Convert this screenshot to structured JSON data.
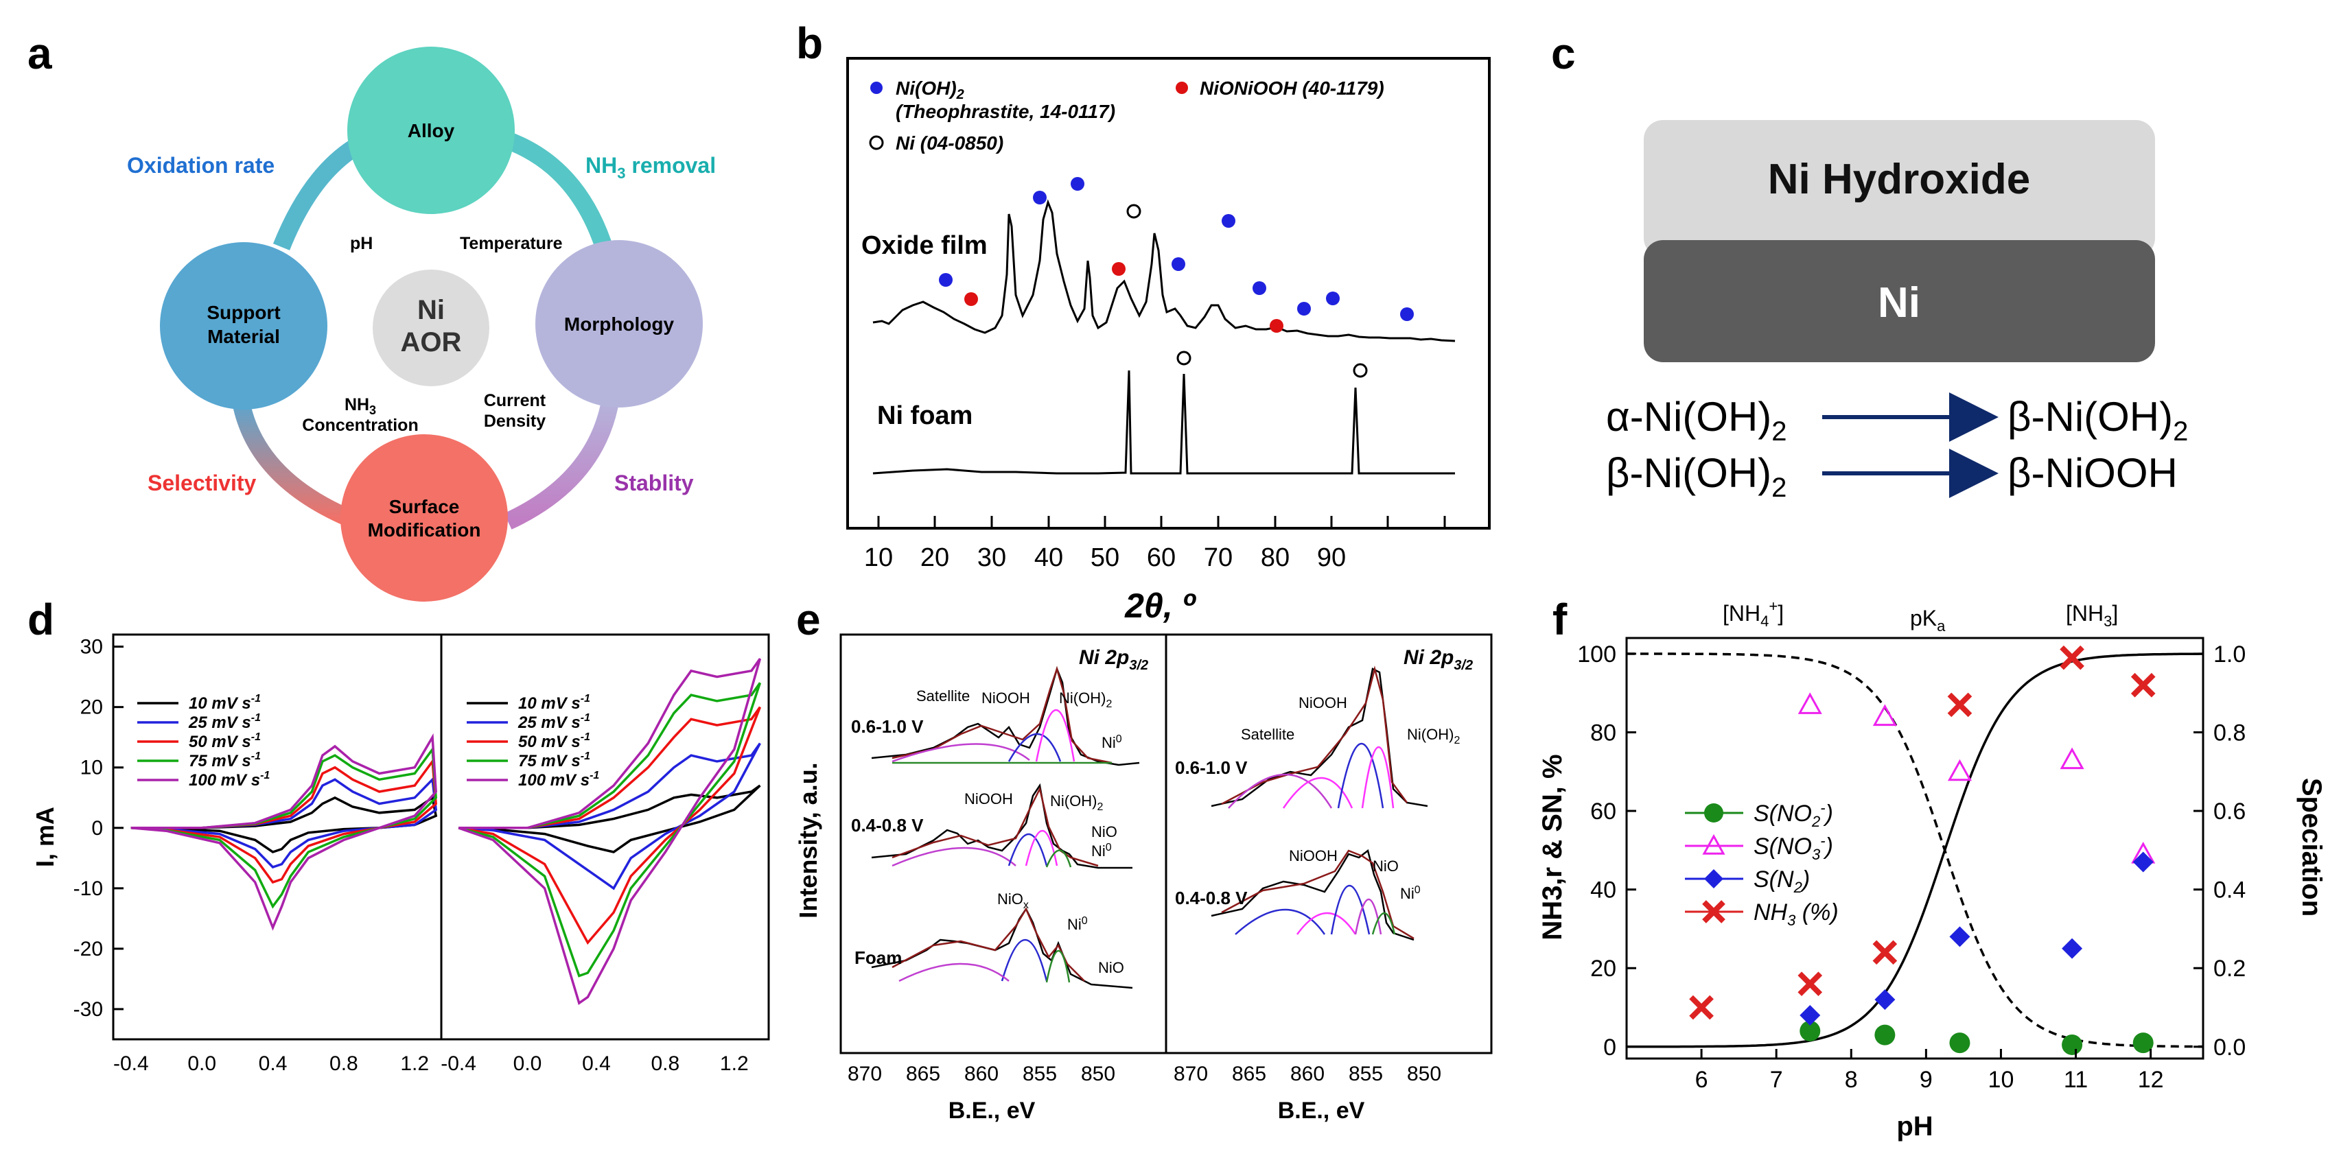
{
  "panel_a": {
    "label": "a",
    "center": {
      "line1": "Ni",
      "line2": "AOR"
    },
    "nodes": {
      "alloy": "Alloy",
      "support": [
        "Support",
        "Material"
      ],
      "morphology": "Morphology",
      "surface": [
        "Surface",
        "Modification"
      ]
    },
    "arc_labels": {
      "oxidation_rate": "Oxidation rate",
      "nh3_removal_prefix": "NH",
      "nh3_removal_sub": "3",
      "nh3_removal_suffix": " removal",
      "selectivity": "Selectivity",
      "stability": "Stablity"
    },
    "inner_labels": {
      "ph": "pH",
      "temperature": "Temperature",
      "nh3_prefix": "NH",
      "nh3_sub": "3",
      "concentration": "Concentration",
      "current": "Current",
      "density": "Density"
    },
    "colors": {
      "alloy": "#5dd3c0",
      "support": "#57a7d1",
      "morphology": "#b5b5dc",
      "surface": "#f37167",
      "center": "#dcdcdc"
    }
  },
  "panel_b": {
    "label": "b",
    "legend": {
      "niooh2_a": "Ni(OH)",
      "niooh2_sub": "2",
      "niooh2_b": "(Theophrastite, 14-0117)",
      "nio": "NiONiOOH (40-1179)",
      "ni": "Ni (04-0850)"
    },
    "traces": {
      "oxide": "Oxide film",
      "foam": "Ni foam"
    },
    "xlabel": "2θ, º",
    "xticks": [
      "10",
      "20",
      "30",
      "40",
      "50",
      "60",
      "70",
      "80",
      "90"
    ]
  },
  "panel_c": {
    "label": "c",
    "top_layer": "Ni Hydroxide",
    "bottom_layer": "Ni",
    "reaction1_from": "α-Ni(OH)",
    "reaction1_to": "β-Ni(OH)",
    "reaction2_from": "β-Ni(OH)",
    "reaction2_to": "β-NiOOH",
    "sub2": "2"
  },
  "panel_d": {
    "label": "d",
    "ylabel": "I, mA",
    "yticks": [
      "30",
      "20",
      "10",
      "0",
      "-10",
      "-20",
      "-30"
    ],
    "xticks_left": [
      "-0.4",
      "0.0",
      "0.4",
      "0.8",
      "1.2"
    ],
    "xticks_right": [
      "-0.4",
      "0.0",
      "0.4",
      "0.8",
      "1.2"
    ],
    "legend": [
      "10 mV s",
      "25 mV s",
      "50 mV s",
      "75 mV s",
      "100 mV s"
    ],
    "legend_sup": "-1",
    "colors": [
      "#000000",
      "#2222dd",
      "#ee1111",
      "#11aa11",
      "#aa22aa"
    ]
  },
  "panel_e": {
    "label": "e",
    "ylabel": "Intensity, a.u.",
    "xlabel": "B.E., eV",
    "title_a": "Ni 2p",
    "title_sub": "3/2",
    "xticks": [
      "870",
      "865",
      "860",
      "855",
      "850"
    ],
    "left": {
      "top_range": "0.6-1.0 V",
      "mid_range": "0.4-0.8 V",
      "bottom_range": "Foam",
      "satellite": "Satellite",
      "niooh": "NiOOH",
      "nioh2": "Ni(OH)",
      "ni0": "Ni",
      "nio": "NiO",
      "niox": "NiO",
      "sup0": "0",
      "subx": "x"
    },
    "right": {
      "top_range": "0.6-1.0 V",
      "mid_range": "0.4-0.8 V",
      "satellite": "Satellite",
      "niooh": "NiOOH",
      "nioh2": "Ni(OH)",
      "nio": "NiO",
      "ni0": "Ni"
    }
  },
  "panel_f": {
    "label": "f",
    "top_labels": {
      "nh4": "[NH",
      "nh4_sup": "4",
      "nh4_plus": "+",
      "nh4_close": "]",
      "pka": "pK",
      "pka_sub": "a",
      "nh3": "[NH",
      "nh3_sub": "3",
      "nh3_close": "]"
    },
    "ylabel_left": "NH3,r & SN, %",
    "ylabel_right": "Speciation",
    "xlabel": "pH",
    "legend": [
      "S(NO2-)",
      "S(NO3-)",
      "S(N2)",
      "NH3 (%)"
    ]
  },
  "chart_data": [
    {
      "id": "d-left",
      "type": "line",
      "title": "",
      "xlabel": "",
      "ylabel": "I, mA",
      "xlim": [
        -0.5,
        1.35
      ],
      "ylim": [
        -35,
        32
      ],
      "series": [
        {
          "name": "10 mV s-1",
          "color": "#000000",
          "x": [
            -0.4,
            0.0,
            0.3,
            0.5,
            0.62,
            0.68,
            0.75,
            0.85,
            1.0,
            1.2,
            1.3,
            1.32,
            1.2,
            1.0,
            0.8,
            0.6,
            0.5,
            0.45,
            0.4,
            0.3,
            0.1,
            -0.2,
            -0.4
          ],
          "y": [
            0,
            0,
            0.3,
            1,
            2.5,
            4,
            5,
            3.5,
            2.5,
            3,
            5,
            2,
            0.5,
            0,
            -0.2,
            -0.8,
            -2,
            -3.5,
            -4,
            -2,
            -0.5,
            -0.1,
            0
          ]
        },
        {
          "name": "25 mV s-1",
          "color": "#2222dd",
          "x": [
            -0.4,
            0.0,
            0.3,
            0.5,
            0.62,
            0.68,
            0.75,
            0.85,
            1.0,
            1.2,
            1.3,
            1.32,
            1.2,
            1.0,
            0.8,
            0.6,
            0.5,
            0.45,
            0.4,
            0.3,
            0.1,
            -0.2,
            -0.4
          ],
          "y": [
            0,
            0,
            0.5,
            1.5,
            4,
            7,
            8,
            6,
            4,
            5,
            8,
            3,
            0.5,
            0,
            -0.5,
            -2,
            -4,
            -6,
            -6.5,
            -3.5,
            -1,
            -0.2,
            0
          ]
        },
        {
          "name": "50 mV s-1",
          "color": "#ee1111",
          "x": [
            -0.4,
            0.0,
            0.3,
            0.5,
            0.62,
            0.68,
            0.75,
            0.85,
            1.0,
            1.2,
            1.3,
            1.32,
            1.2,
            1.0,
            0.8,
            0.6,
            0.5,
            0.45,
            0.4,
            0.3,
            0.1,
            -0.2,
            -0.4
          ],
          "y": [
            0,
            0,
            0.6,
            2,
            5,
            9,
            10,
            8,
            6,
            7,
            11,
            4,
            1,
            0,
            -1,
            -3,
            -6,
            -8.5,
            -9,
            -5,
            -1.5,
            -0.3,
            0
          ]
        },
        {
          "name": "75 mV s-1",
          "color": "#11aa11",
          "x": [
            -0.4,
            0.0,
            0.3,
            0.5,
            0.62,
            0.68,
            0.75,
            0.85,
            1.0,
            1.2,
            1.3,
            1.32,
            1.2,
            1.0,
            0.8,
            0.6,
            0.5,
            0.45,
            0.4,
            0.3,
            0.1,
            -0.2,
            -0.4
          ],
          "y": [
            0,
            0,
            0.7,
            2.5,
            6,
            11,
            12,
            10,
            8,
            9,
            13,
            5,
            1.5,
            0,
            -1.5,
            -4,
            -8,
            -11,
            -13,
            -7,
            -2,
            -0.4,
            0
          ]
        },
        {
          "name": "100 mV s-1",
          "color": "#aa22aa",
          "x": [
            -0.4,
            0.0,
            0.3,
            0.5,
            0.62,
            0.68,
            0.75,
            0.85,
            1.0,
            1.2,
            1.3,
            1.32,
            1.2,
            1.0,
            0.8,
            0.6,
            0.5,
            0.45,
            0.4,
            0.3,
            0.1,
            -0.2,
            -0.4
          ],
          "y": [
            0,
            0,
            0.8,
            3,
            7,
            12,
            13.5,
            11,
            9,
            10,
            15,
            6,
            2,
            0,
            -2,
            -5,
            -9,
            -13,
            -16.5,
            -9,
            -2.5,
            -0.5,
            0
          ]
        }
      ]
    },
    {
      "id": "d-right",
      "type": "line",
      "title": "",
      "xlabel": "",
      "ylabel": "",
      "xlim": [
        -0.5,
        1.4
      ],
      "ylim": [
        -35,
        32
      ],
      "series": [
        {
          "name": "10 mV s-1",
          "color": "#000000",
          "x": [
            -0.4,
            0.0,
            0.3,
            0.5,
            0.7,
            0.85,
            0.95,
            1.1,
            1.3,
            1.35,
            1.2,
            1.0,
            0.8,
            0.6,
            0.5,
            0.35,
            0.1,
            -0.2,
            -0.4
          ],
          "y": [
            0,
            0,
            0.5,
            1.5,
            3,
            5,
            5.5,
            5,
            6,
            7,
            3,
            1,
            -0.5,
            -2,
            -4,
            -3,
            -1,
            -0.2,
            0
          ]
        },
        {
          "name": "25 mV s-1",
          "color": "#2222dd",
          "x": [
            -0.4,
            0.0,
            0.3,
            0.5,
            0.7,
            0.85,
            0.95,
            1.1,
            1.3,
            1.35,
            1.2,
            1.0,
            0.8,
            0.6,
            0.5,
            0.35,
            0.1,
            -0.2,
            -0.4
          ],
          "y": [
            0,
            0,
            1,
            3,
            6,
            10,
            12,
            11,
            12,
            14,
            6,
            2,
            -1,
            -5,
            -10,
            -7,
            -2,
            -0.4,
            0
          ]
        },
        {
          "name": "50 mV s-1",
          "color": "#ee1111",
          "x": [
            -0.4,
            0.0,
            0.3,
            0.5,
            0.7,
            0.85,
            0.95,
            1.1,
            1.3,
            1.35,
            1.2,
            1.0,
            0.8,
            0.6,
            0.5,
            0.35,
            0.1,
            -0.2,
            -0.4
          ],
          "y": [
            0,
            0,
            1.5,
            5,
            10,
            15,
            18,
            17,
            18,
            20,
            9,
            3,
            -2,
            -8,
            -14,
            -19,
            -6,
            -1,
            0
          ]
        },
        {
          "name": "75 mV s-1",
          "color": "#11aa11",
          "x": [
            -0.4,
            0.0,
            0.3,
            0.5,
            0.7,
            0.85,
            0.95,
            1.1,
            1.3,
            1.35,
            1.2,
            1.0,
            0.8,
            0.6,
            0.5,
            0.35,
            0.3,
            0.1,
            -0.2,
            -0.4
          ],
          "y": [
            0,
            0,
            2,
            6,
            12,
            19,
            22,
            21,
            22,
            24,
            11,
            4,
            -3,
            -10,
            -17,
            -24,
            -24.5,
            -8,
            -1.5,
            0
          ]
        },
        {
          "name": "100 mV s-1",
          "color": "#aa22aa",
          "x": [
            -0.4,
            0.0,
            0.3,
            0.5,
            0.7,
            0.85,
            0.95,
            1.1,
            1.3,
            1.35,
            1.2,
            1.0,
            0.8,
            0.6,
            0.5,
            0.35,
            0.3,
            0.1,
            -0.2,
            -0.4
          ],
          "y": [
            0,
            0,
            2.5,
            7,
            14,
            22,
            26,
            25,
            26,
            28,
            13,
            5,
            -4,
            -12,
            -20,
            -28,
            -29,
            -10,
            -2,
            0
          ]
        }
      ]
    },
    {
      "id": "f",
      "type": "scatter",
      "title": "",
      "xlabel": "pH",
      "ylabel": "NH3,r & SN, %",
      "y2label": "Speciation",
      "xlim": [
        5,
        12.7
      ],
      "ylim": [
        -3,
        104
      ],
      "y2lim": [
        -0.03,
        1.04
      ],
      "xticks": [
        6,
        7,
        8,
        9,
        10,
        11,
        12
      ],
      "yticks": [
        0,
        20,
        40,
        60,
        80,
        100
      ],
      "y2ticks": [
        0.0,
        0.2,
        0.4,
        0.6,
        0.8,
        1.0
      ],
      "series": [
        {
          "name": "S(NO2-)",
          "marker": "circle",
          "color": "#1a8a1a",
          "x": [
            7.45,
            8.45,
            9.45,
            10.95,
            11.9
          ],
          "y": [
            4,
            3,
            1,
            0.5,
            1
          ]
        },
        {
          "name": "S(NO3-)",
          "marker": "triangle-open",
          "color": "#ee22ee",
          "x": [
            7.45,
            8.45,
            9.45,
            10.95,
            11.9
          ],
          "y": [
            87,
            84,
            70,
            73,
            49
          ]
        },
        {
          "name": "S(N2)",
          "marker": "diamond",
          "color": "#1f22dd",
          "x": [
            7.45,
            8.45,
            9.45,
            10.95,
            11.9
          ],
          "y": [
            8,
            12,
            28,
            25,
            47
          ]
        },
        {
          "name": "NH3 (%)",
          "marker": "x",
          "color": "#dd2222",
          "x": [
            6.0,
            7.45,
            8.45,
            9.45,
            10.95,
            11.9
          ],
          "y": [
            10,
            16,
            24,
            87,
            99,
            92
          ]
        }
      ],
      "speciation": {
        "pKa": 9.25,
        "curves": [
          "NH4+ (dashed)",
          "NH3 (solid)"
        ]
      }
    }
  ]
}
